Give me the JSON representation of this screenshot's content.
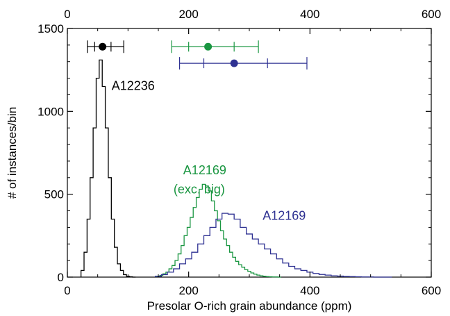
{
  "chart_data": {
    "type": "histogram",
    "xlabel": "Presolar O-rich grain abundance (ppm)",
    "ylabel": "# of instances/bin",
    "xlim": [
      0,
      600
    ],
    "ylim": [
      0,
      1500
    ],
    "x_ticks": [
      0,
      200,
      400,
      600
    ],
    "y_ticks": [
      0,
      500,
      1000,
      1500
    ],
    "x_tick_labels": [
      "0",
      "200",
      "400",
      "600"
    ],
    "y_tick_labels": [
      "0",
      "500",
      "1000",
      "1500"
    ],
    "top_axis_ticks": [
      0,
      200,
      400,
      600
    ],
    "top_axis_tick_labels": [
      "0",
      "200",
      "400",
      "600"
    ],
    "grid": false,
    "bin_width": 5,
    "series": [
      {
        "name": "A12236",
        "color": "#000000",
        "x": [
          25,
          30,
          35,
          40,
          45,
          50,
          55,
          60,
          65,
          70,
          75,
          80,
          85,
          90,
          95,
          100,
          105,
          110
        ],
        "values": [
          40,
          150,
          350,
          600,
          900,
          1200,
          1310,
          1150,
          900,
          600,
          350,
          180,
          80,
          40,
          15,
          5,
          2,
          0
        ]
      },
      {
        "name": "A12169 (exc. big)",
        "color": "#1a9641",
        "x": [
          150,
          155,
          160,
          165,
          170,
          175,
          180,
          185,
          190,
          195,
          200,
          205,
          210,
          215,
          220,
          225,
          230,
          235,
          240,
          245,
          250,
          255,
          260,
          265,
          270,
          275,
          280,
          285,
          290,
          295,
          300,
          305,
          310,
          315,
          320,
          325,
          330,
          335,
          340,
          345,
          350
        ],
        "values": [
          5,
          10,
          20,
          30,
          50,
          70,
          100,
          140,
          190,
          250,
          300,
          360,
          420,
          480,
          530,
          560,
          550,
          520,
          460,
          400,
          340,
          280,
          230,
          190,
          150,
          120,
          95,
          75,
          60,
          45,
          35,
          25,
          18,
          12,
          8,
          5,
          3,
          2,
          1,
          1,
          0
        ]
      },
      {
        "name": "A12169",
        "color": "#2e3192",
        "x": [
          150,
          160,
          170,
          180,
          190,
          200,
          210,
          220,
          230,
          240,
          250,
          260,
          270,
          280,
          290,
          300,
          310,
          320,
          330,
          340,
          350,
          360,
          370,
          380,
          390,
          400,
          410,
          420,
          430,
          440,
          450,
          460,
          470,
          480,
          490,
          500,
          510,
          520,
          530
        ],
        "values": [
          5,
          15,
          30,
          50,
          80,
          110,
          150,
          200,
          250,
          300,
          350,
          385,
          380,
          350,
          300,
          260,
          230,
          200,
          170,
          140,
          110,
          85,
          65,
          50,
          40,
          30,
          22,
          16,
          12,
          8,
          6,
          4,
          3,
          2,
          1,
          1,
          0,
          0,
          0
        ]
      }
    ],
    "error_bars": [
      {
        "series": "A12236",
        "color": "#000000",
        "y": 1390,
        "center": 58,
        "inner": [
          45,
          72
        ],
        "outer": [
          33,
          93
        ]
      },
      {
        "series": "A12169 (exc. big)",
        "color": "#1a9641",
        "y": 1390,
        "center": 232,
        "inner": [
          200,
          275
        ],
        "outer": [
          172,
          315
        ]
      },
      {
        "series": "A12169",
        "color": "#2e3192",
        "y": 1290,
        "center": 275,
        "inner": [
          225,
          330
        ],
        "outer": [
          185,
          395
        ]
      }
    ],
    "annotations": [
      {
        "text": "A12236",
        "color": "#000000",
        "x": 73,
        "y": 1130
      },
      {
        "text": "A12169",
        "color": "#1a9641",
        "x": 191,
        "y": 620
      },
      {
        "text": "(exc. big)",
        "color": "#1a9641",
        "x": 175,
        "y": 505
      },
      {
        "text": "A12169",
        "color": "#2e3192",
        "x": 322,
        "y": 345
      }
    ]
  }
}
